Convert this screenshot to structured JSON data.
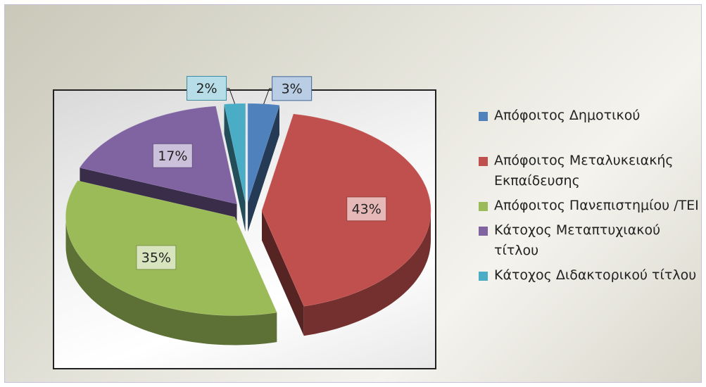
{
  "chart_data": {
    "type": "pie",
    "categories": [
      "Απόφοιτος Δημοτικού",
      "Απόφοιτος Μεταλυκειακής Εκπαίδευσης",
      "Απόφοιτος Πανεπιστημίου /ΤΕΙ",
      "Κάτοχος Μεταπτυχιακού τίτλου",
      "Κάτοχος Διδακτορικού τίτλου"
    ],
    "values": [
      3,
      43,
      35,
      17,
      2
    ],
    "value_labels": [
      "3%",
      "43%",
      "35%",
      "17%",
      "2%"
    ],
    "colors": [
      "#4f81bd",
      "#c0504d",
      "#9bbb59",
      "#8064a2",
      "#4bacc6"
    ],
    "legend": "right"
  }
}
